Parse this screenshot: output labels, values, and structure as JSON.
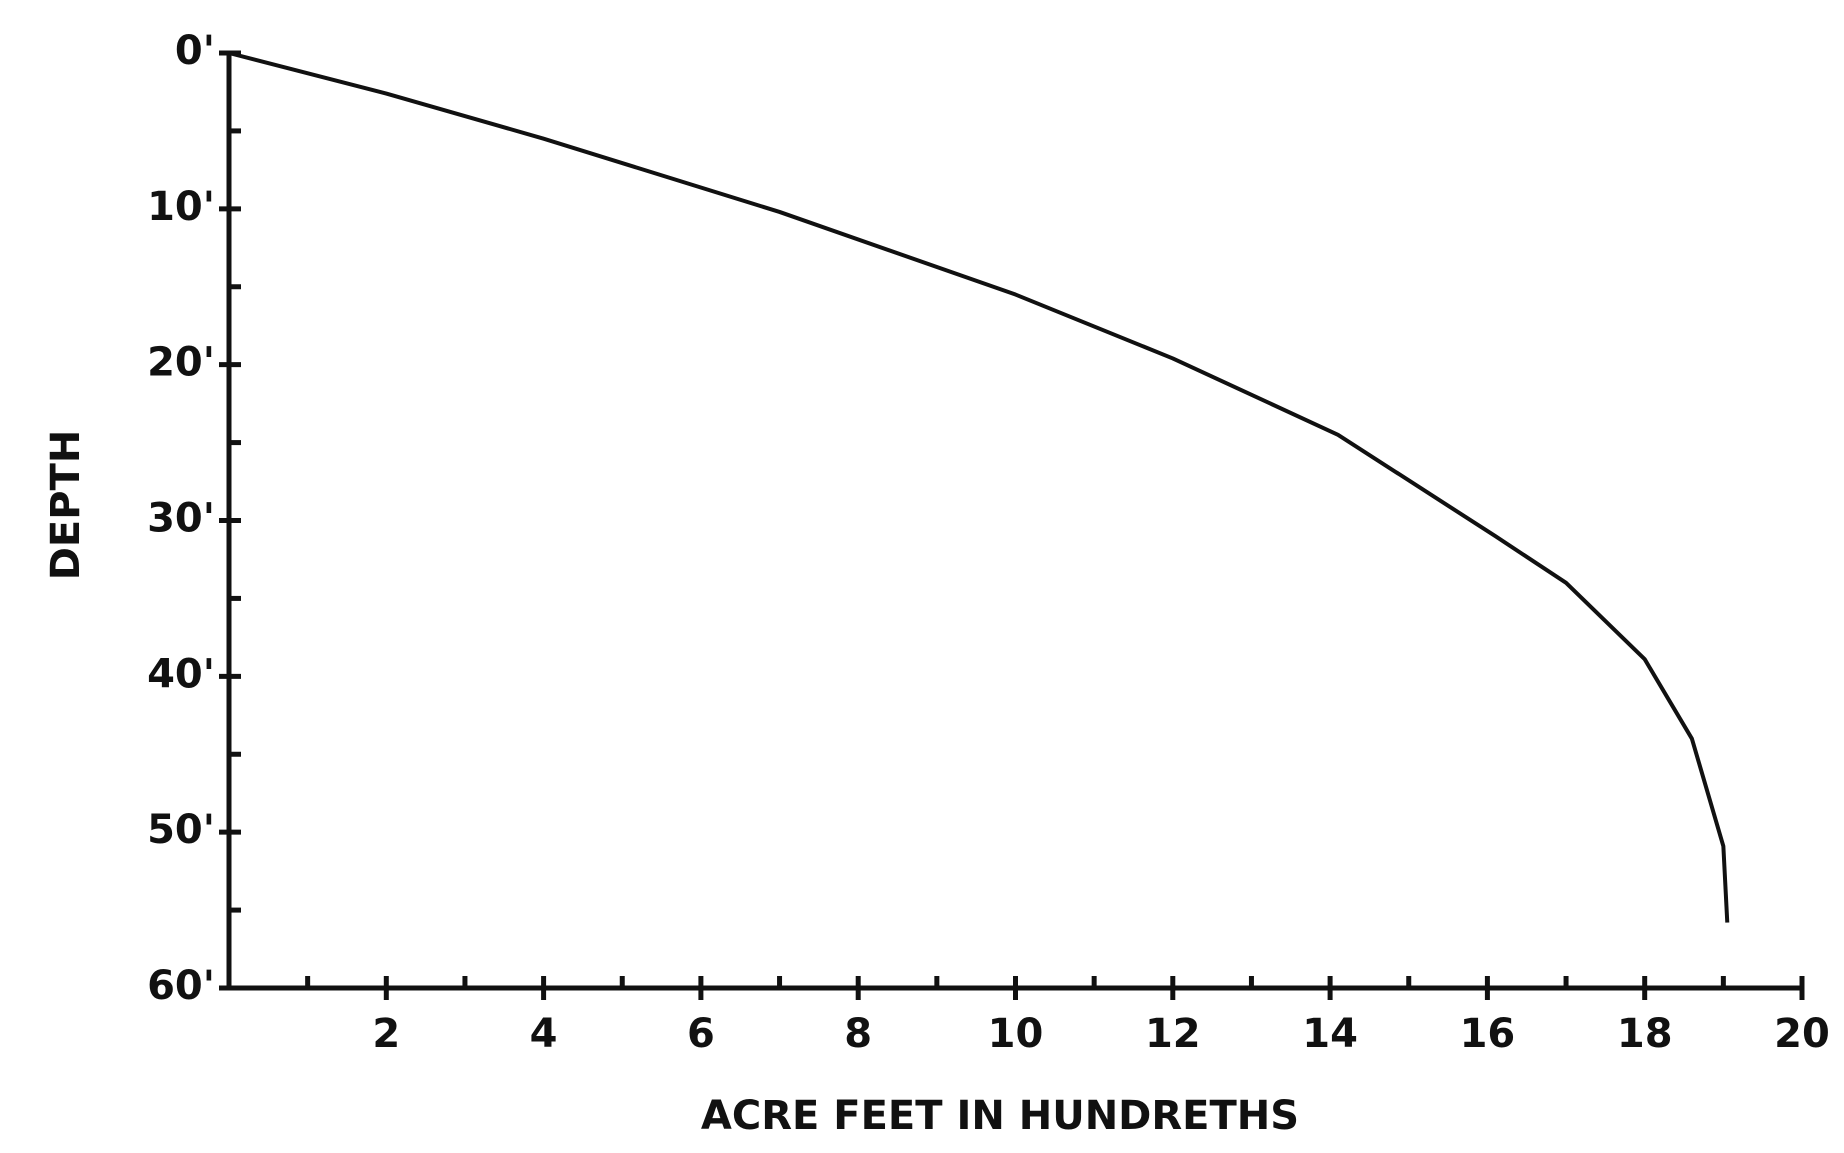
{
  "chart_data": {
    "type": "line",
    "xlabel": "ACRE FEET IN HUNDRETHS",
    "ylabel": "DEPTH",
    "x": [
      0,
      2,
      4,
      7,
      10,
      12,
      14.1,
      16.1,
      17,
      18,
      18.6,
      19,
      19.05
    ],
    "series": [
      {
        "name": "Depth",
        "color": "#111111",
        "values": [
          0,
          2.6,
          5.5,
          10.2,
          15.5,
          19.6,
          24.5,
          31,
          34,
          38.9,
          44,
          50.9,
          55.8
        ]
      }
    ],
    "xlim": [
      0,
      20
    ],
    "xticks": [
      2,
      4,
      6,
      8,
      10,
      12,
      14,
      16,
      18,
      20
    ],
    "xminorticks": [
      1,
      3,
      5,
      7,
      9,
      11,
      13,
      15,
      17,
      19
    ],
    "ylim": [
      0,
      60
    ],
    "y_inverted": true,
    "yticks": [
      {
        "value": 0,
        "label": "0'"
      },
      {
        "value": 10,
        "label": "10'"
      },
      {
        "value": 20,
        "label": "20'"
      },
      {
        "value": 30,
        "label": "30'"
      },
      {
        "value": 40,
        "label": "40'"
      },
      {
        "value": 50,
        "label": "50'"
      },
      {
        "value": 60,
        "label": "60'"
      }
    ],
    "yminorticks": [
      5,
      15,
      25,
      35,
      45,
      55
    ],
    "grid": false
  }
}
